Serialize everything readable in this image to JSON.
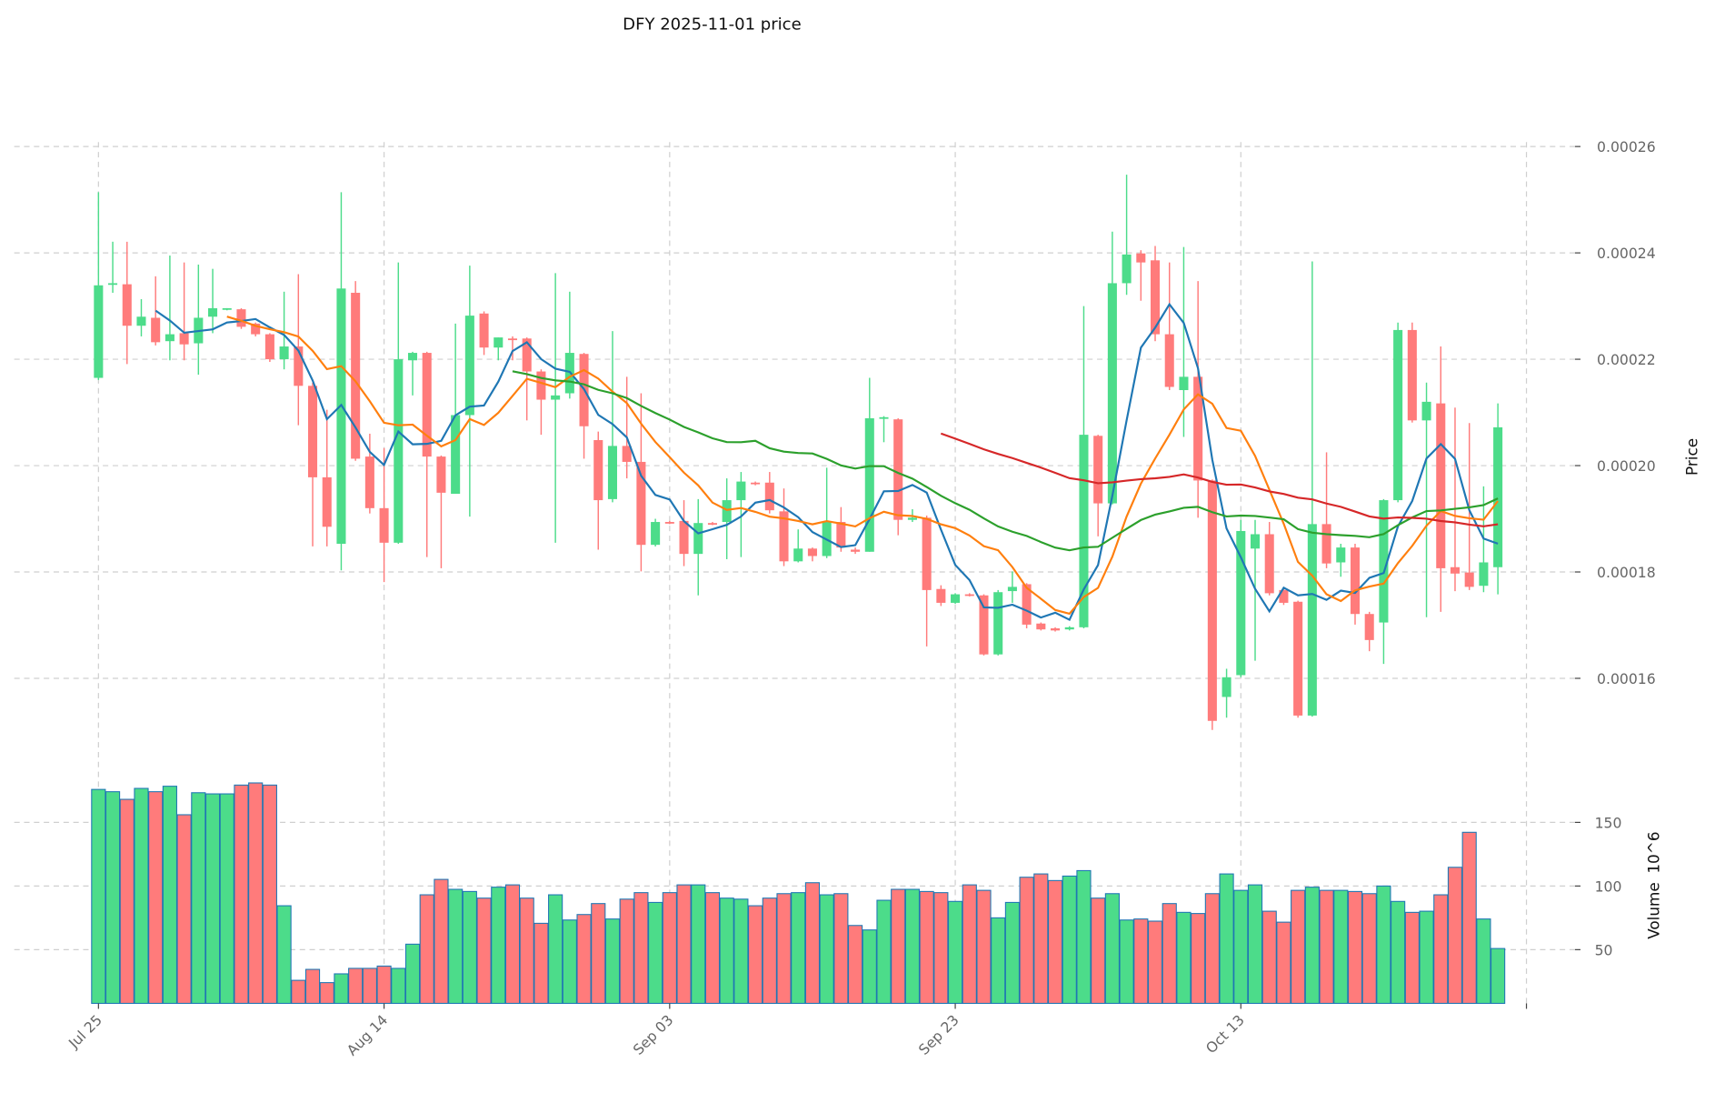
{
  "chart_data": {
    "type": "candlestick",
    "title": "DFY  2025-11-01  price",
    "symbol": "DFY",
    "date": "2025-11-01",
    "start_date": "2025-07-25",
    "price_ylabel": "Price",
    "volume_ylabel": "Volume",
    "volume_unit": "10^6",
    "price_ticks": [
      "0.00016",
      "0.00018",
      "0.00020",
      "0.00022",
      "0.00024",
      "0.00026"
    ],
    "price_ylim": [
      0.000148,
      0.000267
    ],
    "volume_ticks": [
      "50",
      "100",
      "150"
    ],
    "volume_ylim": [
      7.8,
      195
    ],
    "x_tick_labels": [
      "Jul 25",
      "Aug 14",
      "Sep 03",
      "Sep 23",
      "Oct 13",
      ""
    ],
    "x_tick_days": [
      0,
      20,
      40,
      60,
      80,
      100
    ],
    "x_range_days": [
      -5.9,
      103.4
    ],
    "grid": true,
    "moving_averages": [
      {
        "period": 5,
        "color": "#1f77b4"
      },
      {
        "period": 10,
        "color": "#ff7f0e"
      },
      {
        "period": 30,
        "color": "#2ca02c"
      },
      {
        "period": 60,
        "color": "#d62728"
      }
    ],
    "colors": {
      "up": "#4cdc8a",
      "down": "#ff7b7b",
      "volume_edge": "#1f77b4"
    },
    "ohlc": [
      [
        0.0002165,
        0.0002514,
        0.0002161,
        0.0002339
      ],
      [
        0.0002341,
        0.0002421,
        0.0002325,
        0.0002343
      ],
      [
        0.0002341,
        0.0002421,
        0.0002191,
        0.0002263
      ],
      [
        0.0002263,
        0.0002313,
        0.0002243,
        0.000228
      ],
      [
        0.0002278,
        0.0002356,
        0.0002226,
        0.0002232
      ],
      [
        0.0002234,
        0.0002395,
        0.0002198,
        0.0002247
      ],
      [
        0.0002249,
        0.0002382,
        0.0002198,
        0.0002228
      ],
      [
        0.000223,
        0.0002378,
        0.0002171,
        0.0002278
      ],
      [
        0.000228,
        0.000237,
        0.0002249,
        0.0002296
      ],
      [
        0.0002294,
        0.0002296,
        0.0002292,
        0.0002296
      ],
      [
        0.0002294,
        0.0002296,
        0.0002257,
        0.0002261
      ],
      [
        0.0002267,
        0.0002269,
        0.0002243,
        0.0002247
      ],
      [
        0.0002247,
        0.0002249,
        0.0002195,
        0.00022
      ],
      [
        0.00022,
        0.0002327,
        0.0002181,
        0.0002224
      ],
      [
        0.0002224,
        0.000236,
        0.0002076,
        0.000215
      ],
      [
        0.000215,
        0.0002156,
        0.0001848,
        0.0001978
      ],
      [
        0.0001978,
        0.0002105,
        0.0001848,
        0.0001885
      ],
      [
        0.0001853,
        0.0002514,
        0.0001803,
        0.0002333
      ],
      [
        0.0002325,
        0.0002347,
        0.0002009,
        0.0002013
      ],
      [
        0.0002017,
        0.000206,
        0.000191,
        0.000192
      ],
      [
        0.000192,
        0.0002033,
        0.0001781,
        0.0001855
      ],
      [
        0.0001855,
        0.0002382,
        0.0001853,
        0.00022
      ],
      [
        0.0002198,
        0.0002214,
        0.0002132,
        0.0002212
      ],
      [
        0.0002212,
        0.0002214,
        0.0001828,
        0.0002017
      ],
      [
        0.0002017,
        0.0002019,
        0.0001807,
        0.0001949
      ],
      [
        0.0001947,
        0.0002267,
        0.0001947,
        0.0002095
      ],
      [
        0.0002095,
        0.0002376,
        0.0001904,
        0.0002282
      ],
      [
        0.0002286,
        0.000229,
        0.0002208,
        0.0002222
      ],
      [
        0.0002222,
        0.0002241,
        0.0002198,
        0.0002241
      ],
      [
        0.0002239,
        0.0002243,
        0.0002198,
        0.0002237
      ],
      [
        0.0002239,
        0.0002241,
        0.0002085,
        0.0002177
      ],
      [
        0.0002177,
        0.0002181,
        0.0002058,
        0.0002124
      ],
      [
        0.0002124,
        0.0002362,
        0.0001855,
        0.0002132
      ],
      [
        0.0002136,
        0.0002327,
        0.0002126,
        0.0002212
      ],
      [
        0.000221,
        0.0002212,
        0.0002013,
        0.0002074
      ],
      [
        0.0002048,
        0.0002064,
        0.0001842,
        0.0001935
      ],
      [
        0.0001937,
        0.0002253,
        0.0001931,
        0.0002037
      ],
      [
        0.0002037,
        0.0002167,
        0.0001976,
        0.0002007
      ],
      [
        0.0002007,
        0.0002136,
        0.0001801,
        0.0001851
      ],
      [
        0.0001851,
        0.00019,
        0.0001848,
        0.0001894
      ],
      [
        0.0001894,
        0.0001896,
        0.000189,
        0.0001892
      ],
      [
        0.0001896,
        0.0001935,
        0.0001811,
        0.0001834
      ],
      [
        0.0001834,
        0.0001937,
        0.0001756,
        0.0001892
      ],
      [
        0.0001892,
        0.0001894,
        0.0001888,
        0.000189
      ],
      [
        0.0001894,
        0.0001976,
        0.0001824,
        0.0001935
      ],
      [
        0.0001935,
        0.0001988,
        0.0001828,
        0.000197
      ],
      [
        0.0001968,
        0.000197,
        0.0001963,
        0.0001965
      ],
      [
        0.0001968,
        0.0001988,
        0.000191,
        0.0001916
      ],
      [
        0.0001914,
        0.0001957,
        0.0001811,
        0.000182
      ],
      [
        0.000182,
        0.000188,
        0.0001818,
        0.0001844
      ],
      [
        0.0001844,
        0.0001846,
        0.000182,
        0.000183
      ],
      [
        0.000183,
        0.0001996,
        0.0001826,
        0.0001894
      ],
      [
        0.0001894,
        0.0001922,
        0.0001838,
        0.0001846
      ],
      [
        0.0001842,
        0.0001846,
        0.0001834,
        0.0001838
      ],
      [
        0.0001838,
        0.0002165,
        0.0001838,
        0.0002089
      ],
      [
        0.0002089,
        0.0002093,
        0.0002044,
        0.0002091
      ],
      [
        0.0002087,
        0.0002089,
        0.0001869,
        0.0001898
      ],
      [
        0.0001898,
        0.0001918,
        0.0001894,
        0.0001902
      ],
      [
        0.0001902,
        0.0001906,
        0.000166,
        0.0001766
      ],
      [
        0.0001768,
        0.0001775,
        0.0001736,
        0.0001742
      ],
      [
        0.0001742,
        0.000176,
        0.000174,
        0.0001758
      ],
      [
        0.0001758,
        0.000176,
        0.0001754,
        0.0001756
      ],
      [
        0.0001756,
        0.0001758,
        0.0001643,
        0.0001645
      ],
      [
        0.0001645,
        0.0001766,
        0.0001643,
        0.0001762
      ],
      [
        0.0001764,
        0.0001801,
        0.0001742,
        0.0001772
      ],
      [
        0.0001777,
        0.0001779,
        0.0001694,
        0.0001701
      ],
      [
        0.0001703,
        0.0001705,
        0.000169,
        0.0001692
      ],
      [
        0.0001694,
        0.0001696,
        0.0001688,
        0.000169
      ],
      [
        0.0001692,
        0.0001698,
        0.000169,
        0.0001696
      ],
      [
        0.0001696,
        0.00023,
        0.0001694,
        0.0002058
      ],
      [
        0.0002056,
        0.0002058,
        0.0001867,
        0.0001929
      ],
      [
        0.0001929,
        0.000244,
        0.0001927,
        0.0002343
      ],
      [
        0.0002343,
        0.0002547,
        0.0002321,
        0.0002397
      ],
      [
        0.0002399,
        0.0002405,
        0.000231,
        0.0002382
      ],
      [
        0.0002386,
        0.0002413,
        0.0002234,
        0.0002247
      ],
      [
        0.0002247,
        0.0002382,
        0.0002142,
        0.0002148
      ],
      [
        0.0002142,
        0.0002411,
        0.0002054,
        0.0002167
      ],
      [
        0.0002167,
        0.0002347,
        0.0001902,
        0.0001972
      ],
      [
        0.0001972,
        0.0001974,
        0.0001503,
        0.000152
      ],
      [
        0.0001565,
        0.0001618,
        0.0001526,
        0.0001602
      ],
      [
        0.0001606,
        0.0001898,
        0.0001602,
        0.0001877
      ],
      [
        0.0001844,
        0.0001898,
        0.0001633,
        0.0001871
      ],
      [
        0.0001871,
        0.0001894,
        0.0001756,
        0.000176
      ],
      [
        0.0001766,
        0.000177,
        0.0001738,
        0.0001742
      ],
      [
        0.0001744,
        0.0001746,
        0.0001526,
        0.000153
      ],
      [
        0.000153,
        0.0002384,
        0.0001528,
        0.000189
      ],
      [
        0.000189,
        0.0002025,
        0.0001807,
        0.0001816
      ],
      [
        0.0001818,
        0.0001853,
        0.0001791,
        0.0001846
      ],
      [
        0.0001846,
        0.0001853,
        0.0001701,
        0.0001721
      ],
      [
        0.0001721,
        0.0001725,
        0.0001651,
        0.0001672
      ],
      [
        0.0001705,
        0.0001937,
        0.0001627,
        0.0001935
      ],
      [
        0.0001935,
        0.0002269,
        0.0001931,
        0.0002255
      ],
      [
        0.0002255,
        0.0002269,
        0.0002081,
        0.0002085
      ],
      [
        0.0002085,
        0.0002156,
        0.0001715,
        0.000212
      ],
      [
        0.0002117,
        0.0002224,
        0.0001725,
        0.0001807
      ],
      [
        0.0001809,
        0.0002109,
        0.0001764,
        0.0001797
      ],
      [
        0.0001799,
        0.000208,
        0.0001766,
        0.0001772
      ],
      [
        0.0001774,
        0.0001961,
        0.0001762,
        0.0001818
      ],
      [
        0.0001809,
        0.0002117,
        0.0001758,
        0.0002072
      ]
    ],
    "volume": [
      175.9,
      174.1,
      168.1,
      176.7,
      174.1,
      178.4,
      156.0,
      173.3,
      172.4,
      172.4,
      179.3,
      181.0,
      179.3,
      84.5,
      25.9,
      34.5,
      24.1,
      31.0,
      35.3,
      35.3,
      37.1,
      35.3,
      54.3,
      93.1,
      105.2,
      97.4,
      95.7,
      90.5,
      99.1,
      100.9,
      90.5,
      70.7,
      93.1,
      73.3,
      77.6,
      86.2,
      74.1,
      89.7,
      94.8,
      87.1,
      94.8,
      100.9,
      100.9,
      94.8,
      90.5,
      89.7,
      84.5,
      90.5,
      94.0,
      94.8,
      102.6,
      93.1,
      94.0,
      69.0,
      65.5,
      88.8,
      97.4,
      97.4,
      95.7,
      94.8,
      87.9,
      100.9,
      96.6,
      75.0,
      87.1,
      106.9,
      109.5,
      104.3,
      107.8,
      112.1,
      90.5,
      94.0,
      73.3,
      74.1,
      72.4,
      86.2,
      79.3,
      78.4,
      94.0,
      109.5,
      96.6,
      100.9,
      80.2,
      71.6,
      96.6,
      99.1,
      96.6,
      96.6,
      95.7,
      94.0,
      100.0,
      87.9,
      79.3,
      80.2,
      93.1,
      114.7,
      142.2,
      74.1,
      50.9
    ]
  }
}
